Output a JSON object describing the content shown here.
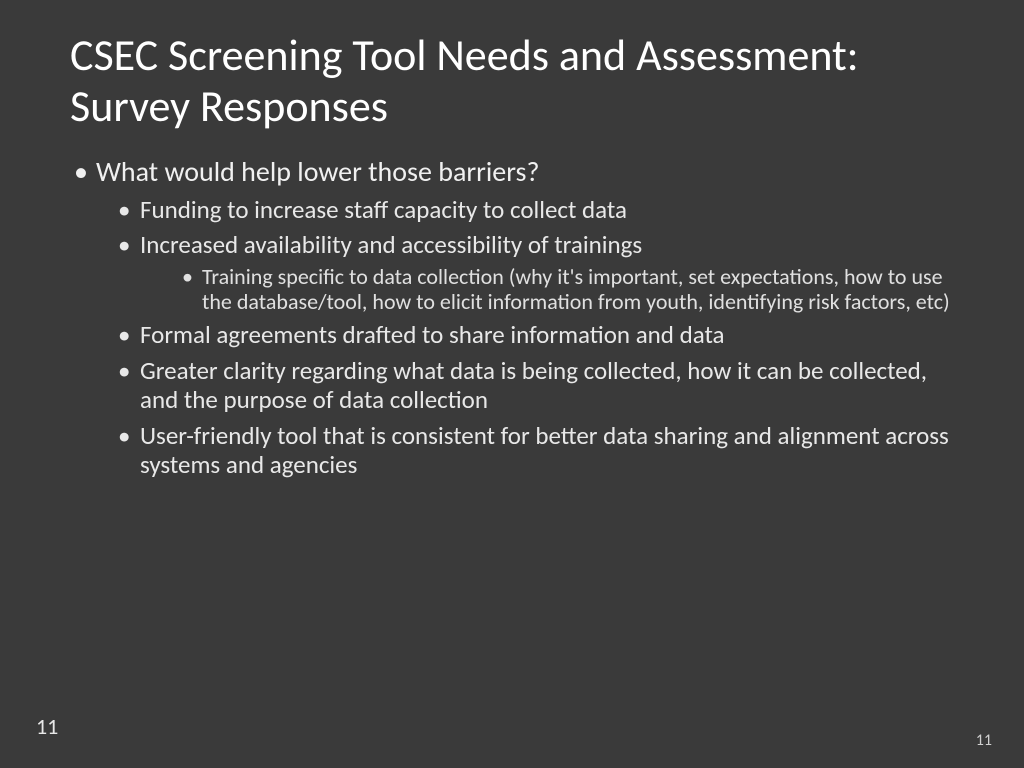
{
  "background_color": "#3a3a3a",
  "text_color": "#ffffff",
  "title": "CSEC Screening Tool Needs and Assessment: Survey Responses",
  "title_fontsize": 44,
  "bullets": {
    "lvl1": [
      {
        "text": "What would help lower those barriers?",
        "lvl2": [
          {
            "text": "Funding to increase staff capacity to collect data"
          },
          {
            "text": "Increased availability and accessibility of trainings",
            "lvl3": [
              {
                "text": "Training specific to data collection (why it's important, set expectations, how to use the database/tool, how to elicit information from youth, identifying risk factors, etc)"
              }
            ]
          },
          {
            "text": "Formal agreements drafted to share information and data"
          },
          {
            "text": "Greater clarity regarding what data is being collected, how it can be collected, and the purpose of data collection"
          },
          {
            "text": "User-friendly tool that is consistent for better data sharing and alignment across systems and agencies"
          }
        ]
      }
    ]
  },
  "page_number_left": "11",
  "page_number_right": "11",
  "font_family": "Segoe UI",
  "lvl1_fontsize": 28,
  "lvl2_fontsize": 25,
  "lvl3_fontsize": 22
}
